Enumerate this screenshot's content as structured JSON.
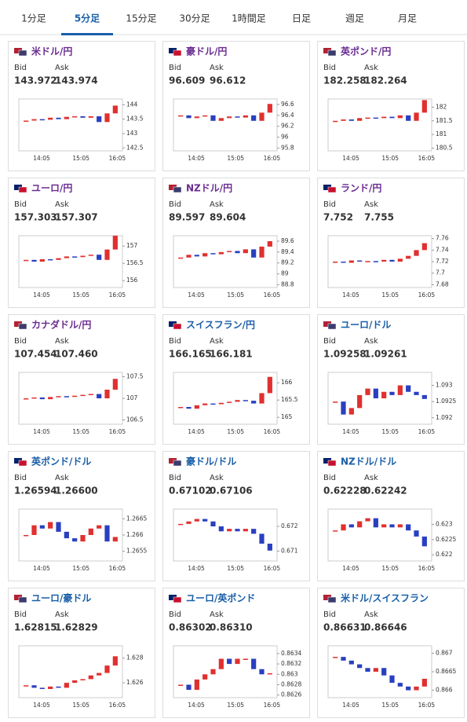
{
  "tabs": [
    "1分足",
    "5分足",
    "15分足",
    "30分足",
    "1時間足",
    "日足",
    "週足",
    "月足"
  ],
  "active_tab": 1,
  "labels": {
    "bid": "Bid",
    "ask": "Ask"
  },
  "xticks": [
    "14:05",
    "15:05",
    "16:05"
  ],
  "up_color": "#e0302f",
  "down_color": "#2a3fc0",
  "panels": [
    {
      "title": "米ドル/円",
      "color": "#6a2c91",
      "bid": "143.972",
      "ask": "143.974",
      "ylim": [
        142.4,
        144.2
      ],
      "yticks": [
        142.5,
        143,
        143.5,
        144
      ],
      "closes": [
        143.45,
        143.5,
        143.48,
        143.55,
        143.5,
        143.58,
        143.6,
        143.55,
        143.6,
        143.4,
        143.7,
        143.97
      ]
    },
    {
      "title": "豪ドル/円",
      "color": "#6a2c91",
      "bid": "96.609",
      "ask": "96.612",
      "ylim": [
        95.75,
        96.7
      ],
      "yticks": [
        95.8,
        96,
        96.2,
        96.4,
        96.6
      ],
      "closes": [
        96.4,
        96.35,
        96.38,
        96.4,
        96.3,
        96.35,
        96.38,
        96.36,
        96.4,
        96.3,
        96.45,
        96.61
      ]
    },
    {
      "title": "英ポンド/円",
      "color": "#6a2c91",
      "bid": "182.258",
      "ask": "182.264",
      "ylim": [
        180.4,
        182.3
      ],
      "yticks": [
        180.5,
        181,
        181.5,
        182
      ],
      "closes": [
        181.5,
        181.55,
        181.5,
        181.6,
        181.62,
        181.6,
        181.65,
        181.6,
        181.7,
        181.5,
        181.8,
        182.26
      ]
    },
    {
      "title": "ユーロ/円",
      "color": "#6a2c91",
      "bid": "157.303",
      "ask": "157.307",
      "ylim": [
        155.8,
        157.3
      ],
      "yticks": [
        156,
        156.5,
        157
      ],
      "closes": [
        156.6,
        156.55,
        156.62,
        156.6,
        156.65,
        156.7,
        156.68,
        156.72,
        156.75,
        156.6,
        156.9,
        157.3
      ]
    },
    {
      "title": "NZドル/円",
      "color": "#6a2c91",
      "bid": "89.597",
      "ask": "89.604",
      "ylim": [
        88.75,
        89.7
      ],
      "yticks": [
        88.8,
        89,
        89.2,
        89.4,
        89.6
      ],
      "closes": [
        89.3,
        89.35,
        89.32,
        89.38,
        89.36,
        89.4,
        89.42,
        89.38,
        89.45,
        89.3,
        89.5,
        89.6
      ]
    },
    {
      "title": "ランド/円",
      "color": "#6a2c91",
      "bid": "7.752",
      "ask": "7.755",
      "ylim": [
        7.675,
        7.765
      ],
      "yticks": [
        7.68,
        7.7,
        7.72,
        7.74,
        7.76
      ],
      "closes": [
        7.72,
        7.718,
        7.722,
        7.72,
        7.721,
        7.72,
        7.723,
        7.72,
        7.725,
        7.73,
        7.74,
        7.752
      ]
    },
    {
      "title": "カナダドル/円",
      "color": "#6a2c91",
      "bid": "107.454",
      "ask": "107.460",
      "ylim": [
        106.4,
        107.6
      ],
      "yticks": [
        106.5,
        107,
        107.5
      ],
      "closes": [
        107,
        107.02,
        106.98,
        107.03,
        107.05,
        107.04,
        107.06,
        107.08,
        107.1,
        107.0,
        107.2,
        107.45
      ]
    },
    {
      "title": "スイスフラン/円",
      "color": "#1a5fa8",
      "bid": "166.165",
      "ask": "166.181",
      "ylim": [
        164.8,
        166.3
      ],
      "yticks": [
        165,
        165.5,
        166
      ],
      "closes": [
        165.3,
        165.25,
        165.35,
        165.4,
        165.38,
        165.42,
        165.45,
        165.5,
        165.48,
        165.4,
        165.7,
        166.17
      ]
    },
    {
      "title": "ユーロ/ドル",
      "color": "#1a5fa8",
      "bid": "1.09258",
      "ask": "1.09261",
      "ylim": [
        1.0918,
        1.0934
      ],
      "yticks": [
        1.092,
        1.0925,
        1.093
      ],
      "closes": [
        1.0925,
        1.0921,
        1.0923,
        1.0927,
        1.0929,
        1.0926,
        1.0928,
        1.0927,
        1.093,
        1.0928,
        1.0927,
        1.09258
      ]
    },
    {
      "title": "英ポンド/ドル",
      "color": "#1a5fa8",
      "bid": "1.26594",
      "ask": "1.26600",
      "ylim": [
        1.2652,
        1.2668
      ],
      "yticks": [
        1.2655,
        1.266,
        1.2665
      ],
      "closes": [
        1.266,
        1.2663,
        1.2662,
        1.2664,
        1.2661,
        1.2659,
        1.2658,
        1.266,
        1.2662,
        1.2663,
        1.2658,
        1.26594
      ]
    },
    {
      "title": "豪ドル/ドル",
      "color": "#1a5fa8",
      "bid": "0.67102",
      "ask": "0.67106",
      "ylim": [
        0.6706,
        0.6727
      ],
      "yticks": [
        0.671,
        0.672
      ],
      "closes": [
        0.6721,
        0.6722,
        0.6723,
        0.6722,
        0.672,
        0.6718,
        0.6719,
        0.6718,
        0.6719,
        0.6717,
        0.6713,
        0.67102
      ]
    },
    {
      "title": "NZドル/ドル",
      "color": "#1a5fa8",
      "bid": "0.62228",
      "ask": "0.62242",
      "ylim": [
        0.6218,
        0.6235
      ],
      "yticks": [
        0.622,
        0.6225,
        0.623
      ],
      "closes": [
        0.6228,
        0.623,
        0.6229,
        0.6231,
        0.6232,
        0.6229,
        0.623,
        0.6229,
        0.623,
        0.6228,
        0.6226,
        0.62228
      ]
    },
    {
      "title": "ユーロ/豪ドル",
      "color": "#1a5fa8",
      "bid": "1.62815",
      "ask": "1.62829",
      "ylim": [
        1.6248,
        1.629
      ],
      "yticks": [
        1.626,
        1.628
      ],
      "closes": [
        1.6258,
        1.6256,
        1.6255,
        1.6257,
        1.6256,
        1.626,
        1.6262,
        1.6263,
        1.6266,
        1.6268,
        1.6274,
        1.62815
      ]
    },
    {
      "title": "ユーロ/英ポンド",
      "color": "#1a5fa8",
      "bid": "0.86302",
      "ask": "0.86310",
      "ylim": [
        0.86255,
        0.86355
      ],
      "yticks": [
        0.8626,
        0.8628,
        0.863,
        0.8632,
        0.8634
      ],
      "closes": [
        0.8628,
        0.8627,
        0.8629,
        0.863,
        0.8631,
        0.8633,
        0.8632,
        0.8633,
        0.8633,
        0.8631,
        0.863,
        0.86302
      ]
    },
    {
      "title": "米ドル/スイスフラン",
      "color": "#1a5fa8",
      "bid": "0.86631",
      "ask": "0.86646",
      "ylim": [
        0.8658,
        0.8672
      ],
      "yticks": [
        0.866,
        0.8665,
        0.867
      ],
      "closes": [
        0.8669,
        0.8668,
        0.8667,
        0.8666,
        0.8665,
        0.8666,
        0.8664,
        0.8662,
        0.8661,
        0.866,
        0.8661,
        0.86631
      ]
    }
  ]
}
